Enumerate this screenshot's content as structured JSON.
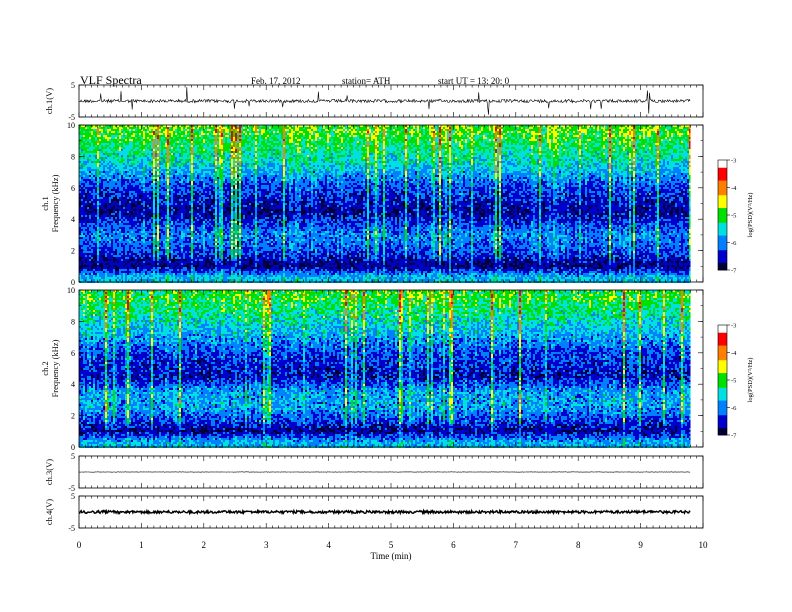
{
  "header": {
    "title": "VLF  Spectra",
    "date": "Feb. 17, 2012",
    "station": "station= ATH",
    "start": "start  UT  =    13: 20: 0"
  },
  "chart_data": [
    {
      "type": "line",
      "panel": "ch1-waveform",
      "ylabel": "ch.1(V)",
      "ylim": [
        -5,
        5
      ],
      "yticks": [
        "5",
        "-5"
      ],
      "baseline_v": 0,
      "xlim": [
        0,
        10
      ]
    },
    {
      "type": "heatmap",
      "panel": "ch1-spectrogram",
      "ylabel": "ch.1\nFrequency  (kHz)",
      "ylim": [
        0,
        10
      ],
      "yticks": [
        "10",
        "8",
        "6",
        "4",
        "2",
        "0"
      ],
      "xlim": [
        0,
        10
      ],
      "data_end_min": 9.8,
      "colorbar": {
        "label": "log(PSD)(V²/Hz)",
        "range": [
          -7,
          -3
        ],
        "ticks": [
          "-3",
          "-4",
          "-5",
          "-6",
          "-7"
        ],
        "colors": [
          "#000033",
          "#0000cc",
          "#0080ff",
          "#00e0e0",
          "#00e000",
          "#ffff00",
          "#ff8000",
          "#ff0000",
          "#ffffff"
        ]
      },
      "frequency_profile_logpsd": [
        {
          "f_khz": 0.3,
          "logpsd": -5.7
        },
        {
          "f_khz": 1.0,
          "logpsd": -6.8
        },
        {
          "f_khz": 2.2,
          "logpsd": -6.2
        },
        {
          "f_khz": 3.0,
          "logpsd": -6.0
        },
        {
          "f_khz": 4.5,
          "logpsd": -6.7
        },
        {
          "f_khz": 6.0,
          "logpsd": -6.3
        },
        {
          "f_khz": 7.5,
          "logpsd": -5.6
        },
        {
          "f_khz": 9.5,
          "logpsd": -5.0
        }
      ]
    },
    {
      "type": "heatmap",
      "panel": "ch2-spectrogram",
      "ylabel": "ch.2\nFrequency  (kHz)",
      "ylim": [
        0,
        10
      ],
      "yticks": [
        "10",
        "8",
        "6",
        "4",
        "2",
        "0"
      ],
      "xlim": [
        0,
        10
      ],
      "data_end_min": 9.8,
      "colorbar": {
        "label": "log(PSD)(V²/Hz)",
        "range": [
          -7,
          -3
        ],
        "ticks": [
          "-3",
          "-4",
          "-5",
          "-6",
          "-7"
        ],
        "colors": [
          "#000033",
          "#0000cc",
          "#0080ff",
          "#00e0e0",
          "#00e000",
          "#ffff00",
          "#ff8000",
          "#ff0000",
          "#ffffff"
        ]
      },
      "frequency_profile_logpsd": [
        {
          "f_khz": 0.3,
          "logpsd": -5.8
        },
        {
          "f_khz": 1.0,
          "logpsd": -6.7
        },
        {
          "f_khz": 2.5,
          "logpsd": -5.9
        },
        {
          "f_khz": 3.5,
          "logpsd": -5.9
        },
        {
          "f_khz": 4.5,
          "logpsd": -6.6
        },
        {
          "f_khz": 6.0,
          "logpsd": -6.3
        },
        {
          "f_khz": 7.5,
          "logpsd": -5.7
        },
        {
          "f_khz": 9.5,
          "logpsd": -5.1
        }
      ]
    },
    {
      "type": "line",
      "panel": "ch3-waveform",
      "ylabel": "ch.3(V)",
      "ylim": [
        -5,
        5
      ],
      "yticks": [
        "5",
        "-5"
      ],
      "baseline_v": 0,
      "xlim": [
        0,
        10
      ]
    },
    {
      "type": "line",
      "panel": "ch4-waveform",
      "ylabel": "ch.4(V)",
      "ylim": [
        -5,
        5
      ],
      "yticks": [
        "5",
        "-5"
      ],
      "baseline_v": 0,
      "xlim": [
        0,
        10
      ]
    }
  ],
  "x_axis": {
    "label": "Time  (min)",
    "ticks": [
      "0",
      "1",
      "2",
      "3",
      "4",
      "5",
      "6",
      "7",
      "8",
      "9",
      "10"
    ]
  },
  "colors": {
    "axis": "#000000",
    "trace": "#000000",
    "background": "#ffffff"
  }
}
